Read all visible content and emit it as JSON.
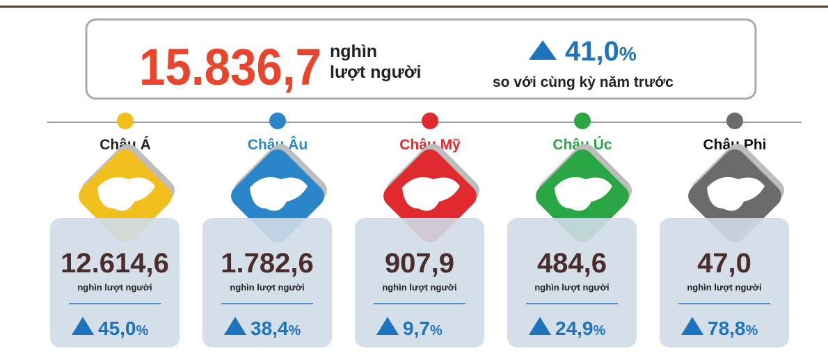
{
  "header": {
    "total": "15.836,7",
    "unit_line1": "nghìn",
    "unit_line2": "lượt người",
    "change": "41,0",
    "change_unit": "%",
    "change_note": "so với cùng kỳ năm trước"
  },
  "regions": [
    {
      "name": "Châu Á",
      "color": "#f2c01e",
      "name_color": "#222222",
      "value": "12.614,6",
      "unit": "nghìn lượt người",
      "change": "45,0",
      "change_unit": "%"
    },
    {
      "name": "Châu Âu",
      "color": "#2a86c8",
      "name_color": "#2a86c8",
      "value": "1.782,6",
      "unit": "nghìn lượt người",
      "change": "38,4",
      "change_unit": "%"
    },
    {
      "name": "Châu Mỹ",
      "color": "#e02a2f",
      "name_color": "#e02a2f",
      "value": "907,9",
      "unit": "nghìn lượt người",
      "change": "9,7",
      "change_unit": "%"
    },
    {
      "name": "Châu Úc",
      "color": "#2aa744",
      "name_color": "#2aa744",
      "value": "484,6",
      "unit": "nghìn lượt người",
      "change": "24,9",
      "change_unit": "%"
    },
    {
      "name": "Châu Phi",
      "color": "#6b6b6b",
      "name_color": "#111111",
      "value": "47,0",
      "unit": "nghìn lượt người",
      "change": "78,8",
      "change_unit": "%"
    }
  ]
}
